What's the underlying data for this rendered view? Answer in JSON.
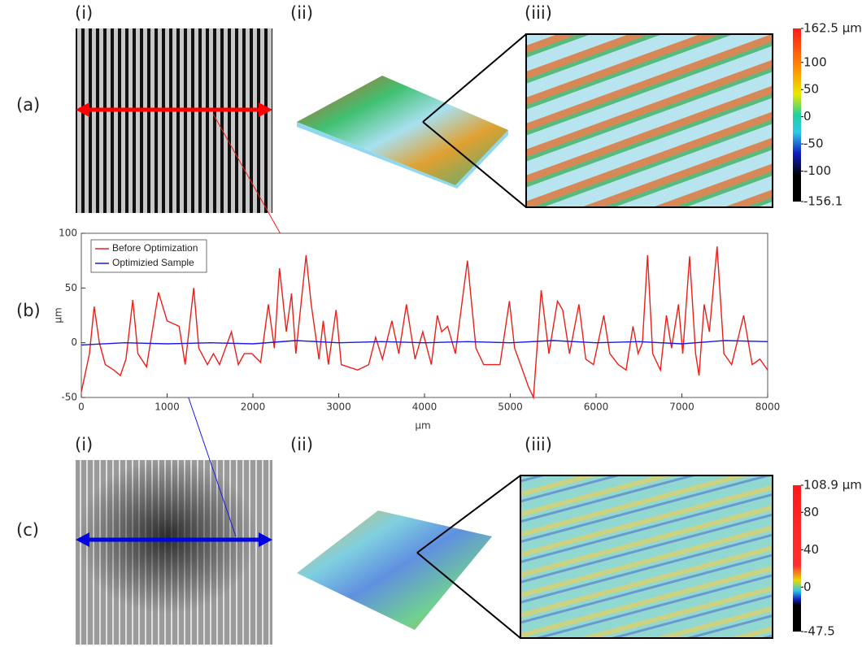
{
  "panels": {
    "row_labels": [
      "(a)",
      "(b)",
      "(c)"
    ],
    "top_labels": [
      "(i)",
      "(ii)",
      "(iii)"
    ],
    "bottom_labels": [
      "(i)",
      "(ii)",
      "(iii)"
    ]
  },
  "colorbars": [
    {
      "lim": [
        -156.1,
        162.5
      ],
      "ticks": [
        {
          "value": 162.5,
          "label": "162.5 μm"
        },
        100,
        50,
        0,
        -50,
        -100,
        -156.1
      ]
    },
    {
      "lim": [
        -47.5,
        108.9
      ],
      "ticks": [
        {
          "value": 108.9,
          "label": "108.9 μm"
        },
        80,
        40,
        0,
        -47.5
      ]
    }
  ],
  "chart_data": {
    "type": "line",
    "xlabel": "μm",
    "ylabel": "μm",
    "xlim": [
      0,
      8000
    ],
    "ylim": [
      -50,
      100
    ],
    "xticks": [
      0,
      1000,
      2000,
      3000,
      4000,
      5000,
      6000,
      7000,
      8000
    ],
    "yticks": [
      -50,
      0,
      50,
      100
    ],
    "legend": "upper left",
    "grid": false,
    "series": [
      {
        "name": "Before Optimization",
        "color": "#e8201a",
        "x": [
          0,
          95,
          150,
          210,
          280,
          380,
          455,
          520,
          600,
          660,
          760,
          900,
          1000,
          1140,
          1210,
          1310,
          1370,
          1470,
          1540,
          1610,
          1750,
          1830,
          1900,
          1990,
          2090,
          2180,
          2250,
          2310,
          2390,
          2450,
          2500,
          2620,
          2680,
          2770,
          2820,
          2880,
          2970,
          3030,
          3220,
          3350,
          3430,
          3510,
          3620,
          3700,
          3790,
          3890,
          3980,
          4080,
          4150,
          4200,
          4270,
          4360,
          4500,
          4600,
          4690,
          4880,
          4990,
          5050,
          5120,
          5210,
          5270,
          5360,
          5450,
          5550,
          5610,
          5690,
          5800,
          5880,
          5970,
          6090,
          6160,
          6260,
          6350,
          6430,
          6490,
          6540,
          6600,
          6660,
          6750,
          6820,
          6880,
          6960,
          7010,
          7090,
          7160,
          7200,
          7260,
          7320,
          7410,
          7490,
          7580,
          7720,
          7820,
          7910,
          8000
        ],
        "values": [
          -45,
          -10,
          33,
          0,
          -20,
          -25,
          -30,
          -15,
          39,
          -10,
          -22,
          46,
          20,
          15,
          -20,
          50,
          -5,
          -20,
          -10,
          -20,
          10,
          -20,
          -10,
          -10,
          -18,
          35,
          -5,
          68,
          10,
          45,
          -10,
          80,
          35,
          -15,
          20,
          -20,
          30,
          -20,
          -25,
          -20,
          5,
          -15,
          20,
          -10,
          35,
          -15,
          10,
          -20,
          25,
          10,
          15,
          -10,
          75,
          -5,
          -20,
          -20,
          38,
          -5,
          -20,
          -40,
          -50,
          48,
          -10,
          38,
          30,
          -10,
          35,
          -15,
          -20,
          25,
          -10,
          -20,
          -25,
          15,
          -10,
          0,
          80,
          -10,
          -25,
          25,
          -5,
          35,
          -10,
          79,
          -10,
          -30,
          35,
          10,
          88,
          -10,
          -20,
          25,
          -20,
          -15,
          -25
        ]
      },
      {
        "name": "Optimizied Sample",
        "color": "#1a1ae0",
        "x": [
          0,
          500,
          1000,
          1500,
          2000,
          2500,
          3000,
          3500,
          4000,
          4500,
          5000,
          5500,
          6000,
          6500,
          7000,
          7500,
          8000
        ],
        "values": [
          -2,
          0,
          -1,
          0,
          -1,
          2,
          0,
          1,
          0,
          1,
          0,
          2,
          0,
          1,
          -1,
          2,
          1
        ]
      }
    ]
  }
}
